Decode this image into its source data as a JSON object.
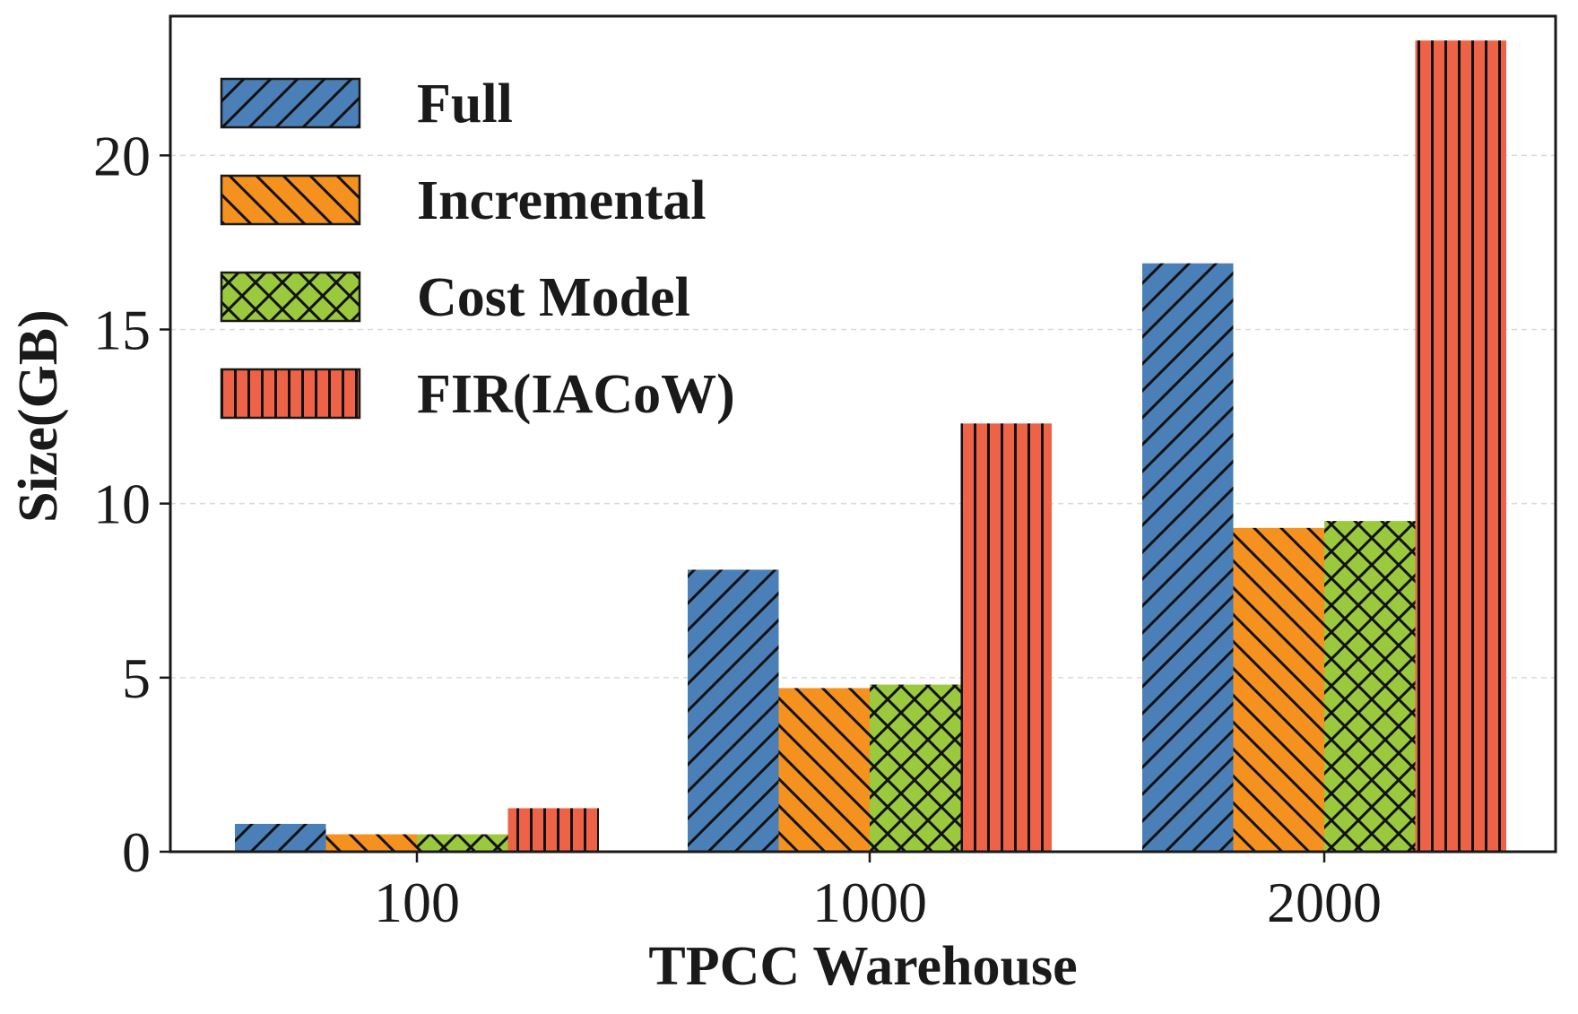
{
  "chart_data": {
    "type": "bar",
    "title": "",
    "xlabel": "TPCC Warehouse",
    "ylabel": "Size(GB)",
    "categories": [
      "100",
      "1000",
      "2000"
    ],
    "ylim": [
      0,
      24
    ],
    "yticks": [
      0,
      5,
      10,
      15,
      20
    ],
    "grid": "horizontal-dashed",
    "legend_position": "top-left",
    "series": [
      {
        "name": "Full",
        "values": [
          0.8,
          8.1,
          16.9
        ],
        "color": "#4a7fb8",
        "hatch": "forward-diagonal"
      },
      {
        "name": "Incremental",
        "values": [
          0.5,
          4.7,
          9.3
        ],
        "color": "#f5911e",
        "hatch": "back-diagonal"
      },
      {
        "name": "Cost Model",
        "values": [
          0.5,
          4.8,
          9.5
        ],
        "color": "#9bc93d",
        "hatch": "cross"
      },
      {
        "name": "FIR(IACoW)",
        "values": [
          1.25,
          12.3,
          23.3
        ],
        "color": "#ee6347",
        "hatch": "vertical"
      }
    ]
  }
}
